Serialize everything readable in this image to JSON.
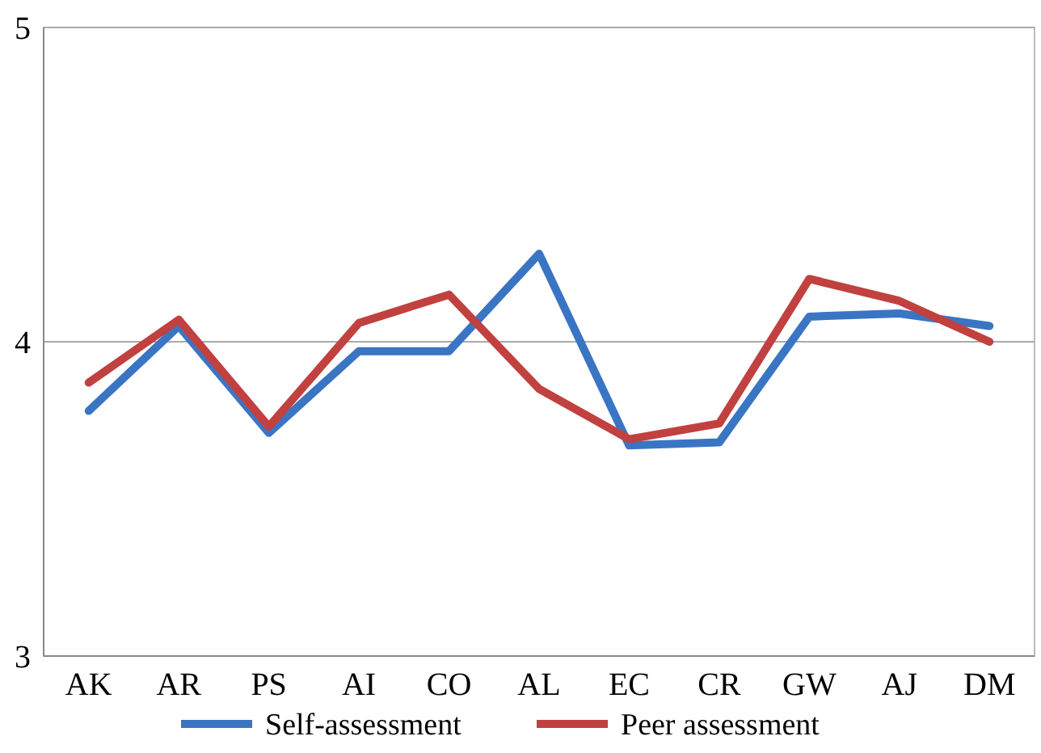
{
  "chart_data": {
    "type": "line",
    "categories": [
      "AK",
      "AR",
      "PS",
      "AI",
      "CO",
      "AL",
      "EC",
      "CR",
      "GW",
      "AJ",
      "DM"
    ],
    "series": [
      {
        "name": "Self-assessment",
        "color": "#3a75c4",
        "values": [
          3.78,
          4.05,
          3.71,
          3.97,
          3.97,
          4.28,
          3.67,
          3.68,
          4.08,
          4.09,
          4.05
        ]
      },
      {
        "name": "Peer assessment",
        "color": "#c0413f",
        "values": [
          3.87,
          4.07,
          3.73,
          4.06,
          4.15,
          3.85,
          3.69,
          3.74,
          4.2,
          4.13,
          4.0
        ]
      }
    ],
    "ylim": [
      3,
      5
    ],
    "yticks": [
      3,
      4,
      5
    ],
    "grid": "y",
    "legend": "bottom",
    "marker": "none",
    "line_style": "solid"
  }
}
